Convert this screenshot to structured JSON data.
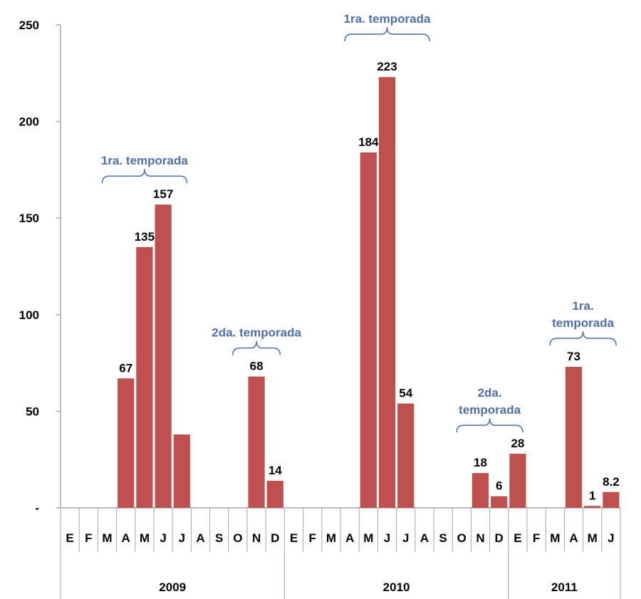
{
  "colors": {
    "bar": "#c0504d",
    "annotation": "#4f6fa8",
    "axis": "#a6a6a6"
  },
  "chart_data": {
    "type": "bar",
    "ylim": [
      0,
      250
    ],
    "yticks": [
      {
        "value": 0,
        "label": "-"
      },
      {
        "value": 50,
        "label": "50"
      },
      {
        "value": 100,
        "label": "100"
      },
      {
        "value": 150,
        "label": "150"
      },
      {
        "value": 200,
        "label": "200"
      },
      {
        "value": 250,
        "label": "250"
      }
    ],
    "categories": [
      "E",
      "F",
      "M",
      "A",
      "M",
      "J",
      "J",
      "A",
      "S",
      "O",
      "N",
      "D",
      "E",
      "F",
      "M",
      "A",
      "M",
      "J",
      "J",
      "A",
      "S",
      "O",
      "N",
      "D",
      "E",
      "F",
      "M",
      "A",
      "M",
      "J"
    ],
    "values": [
      null,
      null,
      null,
      67,
      135,
      157,
      38,
      null,
      null,
      null,
      68,
      14,
      null,
      null,
      null,
      null,
      184,
      223,
      54,
      null,
      null,
      null,
      18,
      6,
      28,
      null,
      null,
      73,
      1,
      8.2
    ],
    "data_labels": [
      null,
      null,
      null,
      "67",
      "135",
      "157",
      null,
      null,
      null,
      null,
      "68",
      "14",
      null,
      null,
      null,
      null,
      "184",
      "223",
      "54",
      null,
      null,
      null,
      "18",
      "6",
      "28",
      null,
      null,
      "73",
      "1",
      "8.2"
    ],
    "years": [
      {
        "label": "2009",
        "start": 0,
        "end": 12
      },
      {
        "label": "2010",
        "start": 12,
        "end": 24
      },
      {
        "label": "2011",
        "start": 24,
        "end": 30
      }
    ],
    "annotations": [
      {
        "lines": [
          "1ra. temporada"
        ],
        "from": 2,
        "to": 7
      },
      {
        "lines": [
          "2da. temporada"
        ],
        "from": 9,
        "to": 12
      },
      {
        "lines": [
          "1ra. temporada"
        ],
        "from": 15,
        "to": 20
      },
      {
        "lines": [
          "2da.",
          "temporada"
        ],
        "from": 21,
        "to": 25
      },
      {
        "lines": [
          "1ra.",
          "temporada"
        ],
        "from": 26,
        "to": 30
      }
    ]
  }
}
